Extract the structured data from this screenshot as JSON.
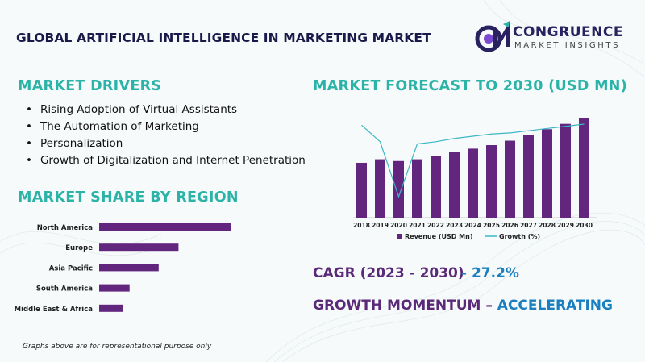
{
  "title": "GLOBAL ARTIFICIAL INTELLIGENCE IN MARKETING MARKET",
  "logo": {
    "name": "CONGRUENCE",
    "tagline": "MARKET INSIGHTS",
    "mark": "CM"
  },
  "drivers": {
    "heading": "MARKET DRIVERS",
    "items": [
      "Rising Adoption of Virtual Assistants",
      "The Automation of Marketing",
      "Personalization",
      "Growth of Digitalization and Internet Penetration"
    ]
  },
  "region_heading": "MARKET SHARE BY REGION",
  "forecast_heading": "MARKET FORECAST TO 2030 (USD MN)",
  "cagr": {
    "label": "CAGR (2023 - 2030)",
    "value": "- 27.2%"
  },
  "growth": {
    "label": "GROWTH MOMENTUM – ",
    "value": "ACCELERATING"
  },
  "footnote": "Graphs above are for representational purpose only",
  "colors": {
    "bar": "#62267f",
    "line": "#3bb7c4",
    "teal": "#2bb3a8",
    "navy": "#1a1a4a"
  },
  "chart_data": [
    {
      "type": "bar",
      "orientation": "horizontal",
      "categories": [
        "North America",
        "Europe",
        "Asia Pacific",
        "South America",
        "Middle East & Africa"
      ],
      "values": [
        100,
        60,
        45,
        23,
        18
      ]
    },
    {
      "type": "bar",
      "categories": [
        "2018",
        "2019",
        "2020",
        "2021",
        "2022",
        "2023",
        "2024",
        "2025",
        "2026",
        "2027",
        "2028",
        "2029",
        "2030"
      ],
      "series": [
        {
          "name": "Revenue (USD Mn)",
          "type": "bar",
          "values": [
            62,
            66,
            64,
            66,
            70,
            74,
            78,
            82,
            87,
            93,
            100,
            106,
            113
          ]
        },
        {
          "name": "Growth (%)",
          "type": "line",
          "values": [
            45,
            30,
            -20,
            28,
            30,
            33,
            35,
            37,
            38,
            40,
            42,
            44,
            46
          ]
        }
      ],
      "legend": "bottom"
    }
  ]
}
